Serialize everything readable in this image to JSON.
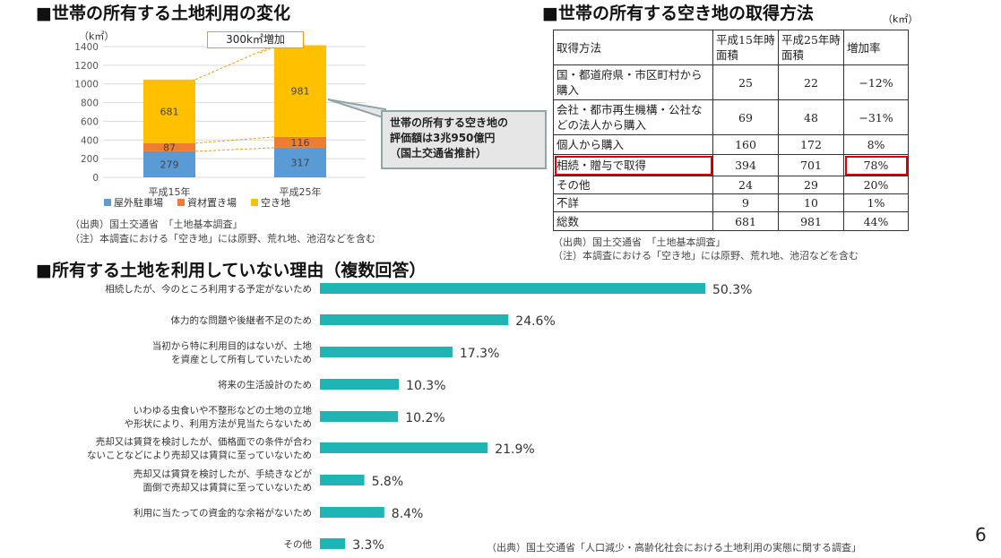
{
  "left": {
    "title": "■世帯の所有する土地利用の変化",
    "unit": "（k㎡）",
    "callout": "300k㎡増加",
    "note_box": [
      "世帯の所有する空き地の",
      "評価額は3兆950億円",
      "（国土交通省推計）"
    ],
    "source": "（出典）国土交通省　「土地基本調査」",
    "note": "（注）本調査における「空き地」には原野、荒れ地、池沼などを含む"
  },
  "right": {
    "title": "■世帯の所有する空き地の取得方法",
    "unit": "（k㎡）",
    "headers": [
      "取得方法",
      "平成15年時面積",
      "平成25年時面積",
      "増加率"
    ],
    "rows": [
      [
        "国・都道府県・市区町村から購入",
        "25",
        "22",
        "−12%"
      ],
      [
        "会社・都市再生機構・公社などの法人から購入",
        "69",
        "48",
        "−31%"
      ],
      [
        "個人から購入",
        "160",
        "172",
        "8%"
      ],
      [
        "相続・贈与で取得",
        "394",
        "701",
        "78%"
      ],
      [
        "その他",
        "24",
        "29",
        "20%"
      ],
      [
        "不詳",
        "9",
        "10",
        "1%"
      ],
      [
        "総数",
        "681",
        "981",
        "44%"
      ]
    ],
    "source": "（出典）国土交通省　「土地基本調査」",
    "note": "（注）本調査における「空き地」には原野、荒れ地、池沼などを含む"
  },
  "bottom": {
    "title": "■所有する土地を利用していない理由（複数回答）",
    "source": "（出典）国土交通省「人口減少・高齢化社会における土地利用の実態に関する調査」"
  },
  "page_number": "6",
  "chart_data": [
    {
      "type": "bar",
      "stacked": true,
      "categories": [
        "平成15年",
        "平成25年"
      ],
      "ylim": [
        0,
        1400
      ],
      "yticks": [
        0,
        200,
        400,
        600,
        800,
        1000,
        1200,
        1400
      ],
      "series": [
        {
          "name": "屋外駐車場",
          "color": "#5b9bd5",
          "values": [
            279,
            317
          ]
        },
        {
          "name": "資材置き場",
          "color": "#ed7d31",
          "values": [
            87,
            116
          ]
        },
        {
          "name": "空き地",
          "color": "#ffc000",
          "values": [
            681,
            981
          ]
        }
      ]
    },
    {
      "type": "bar",
      "orientation": "horizontal",
      "color": "#1fb5b5",
      "categories": [
        [
          "相続したが、今のところ利用する予定がないため"
        ],
        [
          "体力的な問題や後継者不足のため"
        ],
        [
          "当初から特に利用目的はないが、土地",
          "を資産として所有していたいため"
        ],
        [
          "将来の生活設計のため"
        ],
        [
          "いわゆる虫食いや不整形などの土地の立地",
          "や形状により、利用方法が見当たらないため"
        ],
        [
          "売却又は賃貸を検討したが、価格面での条件が合わ",
          "ないことなどにより売却又は賃貸に至っていないため"
        ],
        [
          "売却又は賃貸を検討したが、手続きなどが",
          "面倒で売却又は賃貸に至っていないため"
        ],
        [
          "利用に当たっての資金的な余裕がないため"
        ],
        [
          "その他"
        ]
      ],
      "values": [
        50.3,
        24.6,
        17.3,
        10.3,
        10.2,
        21.9,
        5.8,
        8.4,
        3.3
      ],
      "labels": [
        "50.3%",
        "24.6%",
        "17.3%",
        "10.3%",
        "10.2%",
        "21.9%",
        "5.8%",
        "8.4%",
        "3.3%"
      ]
    }
  ]
}
